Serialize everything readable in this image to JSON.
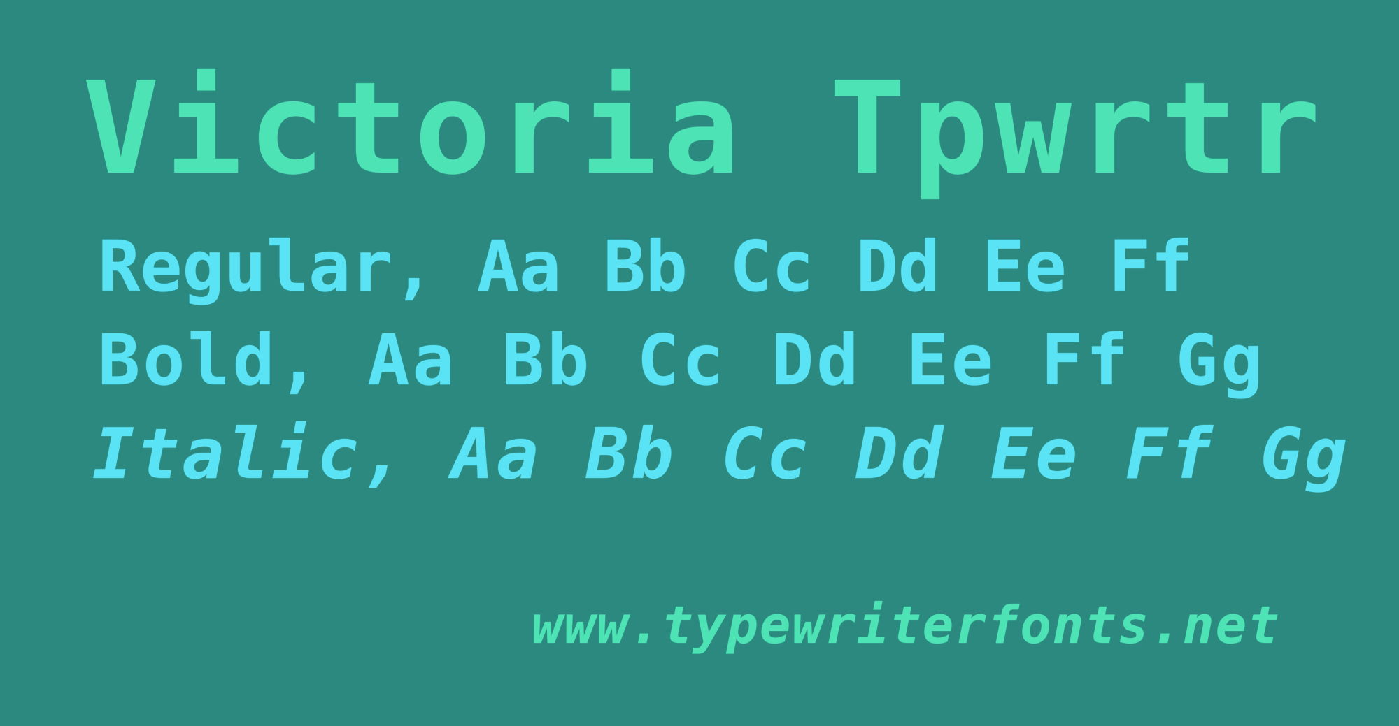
{
  "colors": {
    "background": "#2b897f",
    "title": "#4de3b5",
    "specimen": "#5ae3f5",
    "url": "#4de3b5"
  },
  "title": "Victoria Tpwrtr",
  "specimen_lines": {
    "regular": "Regular, Aa Bb Cc Dd Ee Ff",
    "bold": "Bold, Aa Bb Cc Dd Ee Ff Gg",
    "italic": "Italic, Aa Bb Cc Dd Ee Ff Gg"
  },
  "url": "www.typewriterfonts.net"
}
